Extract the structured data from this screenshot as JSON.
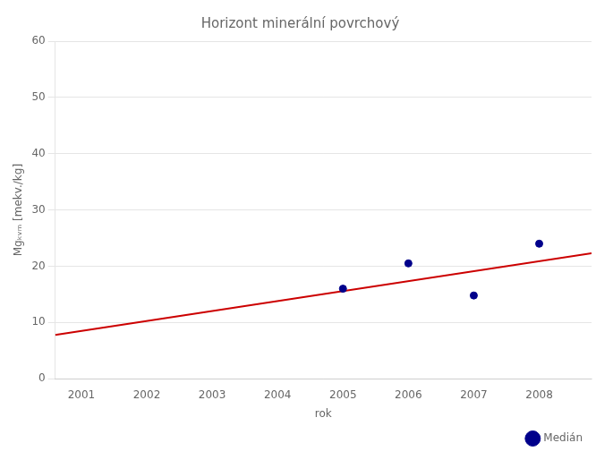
{
  "chart_data": {
    "type": "scatter",
    "title": "Horizont minerální povrchový",
    "xlabel": "rok",
    "ylabel": "Mgₖᵥₘ [mekv./kg]",
    "xlim": [
      2000.6,
      2008.8
    ],
    "ylim": [
      0,
      60
    ],
    "xticks": [
      2001,
      2002,
      2003,
      2004,
      2005,
      2006,
      2007,
      2008
    ],
    "yticks": [
      0,
      10,
      20,
      30,
      40,
      50,
      60
    ],
    "grid": "y",
    "legend": "lower right",
    "series": [
      {
        "type": "line",
        "color": "#CC0000",
        "line_style": "solid",
        "x": [
          2000.6,
          2008.8
        ],
        "values": [
          7.8,
          22.3
        ]
      },
      {
        "name": "Medián",
        "type": "scatter",
        "color": "#00008B",
        "marker": "circle",
        "x": [
          2005,
          2006,
          2007,
          2008
        ],
        "values": [
          16.0,
          20.5,
          14.8,
          24.0
        ]
      }
    ]
  }
}
